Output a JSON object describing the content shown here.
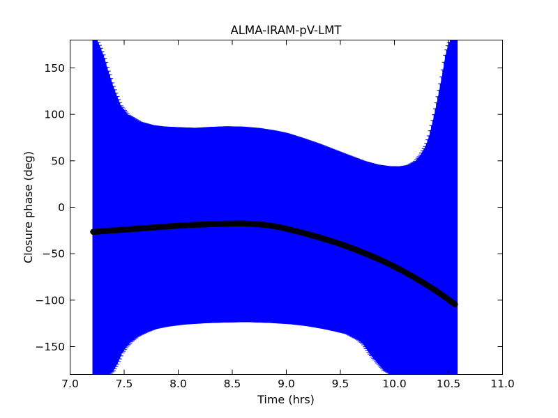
{
  "figure": {
    "background": "#ffffff",
    "title": "ALMA-IRAM-pV-LMT"
  },
  "chart_data": {
    "type": "line",
    "title": "ALMA-IRAM-pV-LMT",
    "xlabel": "Time (hrs)",
    "ylabel": "Closure phase (deg)",
    "xlim": [
      7.0,
      11.0
    ],
    "ylim": [
      -180,
      180
    ],
    "grid": false,
    "legend": null,
    "xticks": [
      7.0,
      7.5,
      8.0,
      8.5,
      9.0,
      9.5,
      10.0,
      10.5,
      11.0
    ],
    "xtick_labels": [
      "7.0",
      "7.5",
      "8.0",
      "8.5",
      "9.0",
      "9.5",
      "10.0",
      "10.5",
      "11.0"
    ],
    "yticks": [
      -150,
      -100,
      -50,
      0,
      50,
      100,
      150
    ],
    "ytick_labels": [
      "−150",
      "−100",
      "−50",
      "0",
      "50",
      "100",
      "150"
    ],
    "colors": {
      "envelope": "#0000ff",
      "model_line": "#000208",
      "axes": "#000000"
    },
    "series": [
      {
        "name": "uncertainty-envelope-errorbars",
        "type": "errorbar-band",
        "color": "#0000ff",
        "t_start": 7.213,
        "t_end": 10.578,
        "bar_count": 290,
        "upper": {
          "t": [
            7.213,
            7.25,
            7.28,
            7.3,
            7.325,
            7.345,
            7.37,
            7.39,
            7.435,
            7.47,
            7.54,
            7.65,
            7.76,
            7.86,
            8.0,
            8.16,
            8.3,
            8.45,
            8.6,
            8.75,
            8.9,
            9.0,
            9.15,
            9.3,
            9.45,
            9.6,
            9.72,
            9.84,
            9.95,
            10.05,
            10.13,
            10.19,
            10.24,
            10.29,
            10.32,
            10.36,
            10.4,
            10.43,
            10.45,
            10.47,
            10.49,
            10.51,
            10.52,
            10.578
          ],
          "v": [
            180,
            180,
            172,
            166,
            158,
            149,
            141,
            133,
            119,
            109,
            99,
            91.5,
            88,
            86.5,
            85.7,
            85,
            86,
            86.7,
            86.3,
            84.8,
            82,
            79.5,
            74,
            68,
            61.2,
            54.5,
            49.3,
            45.5,
            43.8,
            43.5,
            45,
            49,
            56,
            66,
            76,
            95,
            117,
            135,
            148,
            162,
            172,
            178,
            180,
            180
          ]
        },
        "lower": {
          "t": [
            7.213,
            7.36,
            7.4,
            7.43,
            7.455,
            7.48,
            7.52,
            7.565,
            7.63,
            7.71,
            7.79,
            7.9,
            8.05,
            8.25,
            8.45,
            8.65,
            8.85,
            9.05,
            9.2,
            9.35,
            9.45,
            9.56,
            9.665,
            9.71,
            9.77,
            9.84,
            9.9,
            9.96,
            9.99,
            10.578
          ],
          "v": [
            -180,
            -180,
            -176,
            -170,
            -164,
            -157,
            -150.5,
            -144.5,
            -138.5,
            -134,
            -130.5,
            -128,
            -125.8,
            -124.3,
            -123.5,
            -123.2,
            -124,
            -125.5,
            -127.5,
            -130.5,
            -133,
            -136,
            -142.5,
            -147,
            -157.5,
            -167,
            -175,
            -179,
            -180,
            -180
          ]
        }
      },
      {
        "name": "model-closure-phase",
        "type": "line",
        "color": "#000208",
        "linewidth": 8.5,
        "t": [
          7.213,
          7.45,
          7.7,
          7.95,
          8.2,
          8.45,
          8.6,
          8.75,
          8.9,
          9.05,
          9.2,
          9.35,
          9.5,
          9.65,
          9.8,
          9.95,
          10.1,
          10.25,
          10.4,
          10.56
        ],
        "v": [
          -26.5,
          -24.6,
          -22.3,
          -20.2,
          -18.5,
          -17.6,
          -17.4,
          -18.2,
          -20.5,
          -24.5,
          -29,
          -34,
          -39.5,
          -46,
          -53,
          -61,
          -70,
          -80,
          -91,
          -104.5
        ]
      }
    ]
  }
}
